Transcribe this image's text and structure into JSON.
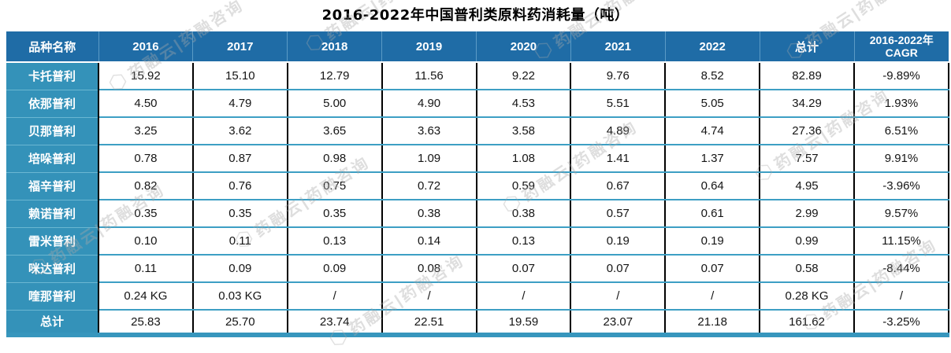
{
  "title": "2016-2022年中国普利类原料药消耗量（吨）",
  "watermark": {
    "text": "药融云|药融咨询"
  },
  "chart_data": {
    "type": "table",
    "title": "2016-2022年中国普利类原料药消耗量（吨）",
    "unit": "吨",
    "columns": [
      "品种名称",
      "2016",
      "2017",
      "2018",
      "2019",
      "2020",
      "2021",
      "2022",
      "总计"
    ],
    "cagr_header": {
      "line1": "2016-2022年",
      "line2": "CAGR"
    },
    "rows": [
      {
        "label": "卡托普利",
        "values": [
          "15.92",
          "15.10",
          "12.79",
          "11.56",
          "9.22",
          "9.76",
          "8.52",
          "82.89",
          "-9.89%"
        ]
      },
      {
        "label": "依那普利",
        "values": [
          "4.50",
          "4.79",
          "5.00",
          "4.90",
          "4.53",
          "5.51",
          "5.05",
          "34.29",
          "1.93%"
        ]
      },
      {
        "label": "贝那普利",
        "values": [
          "3.25",
          "3.62",
          "3.65",
          "3.63",
          "3.58",
          "4.89",
          "4.74",
          "27.36",
          "6.51%"
        ]
      },
      {
        "label": "培哚普利",
        "values": [
          "0.78",
          "0.87",
          "0.98",
          "1.09",
          "1.08",
          "1.41",
          "1.37",
          "7.57",
          "9.91%"
        ]
      },
      {
        "label": "福辛普利",
        "values": [
          "0.82",
          "0.76",
          "0.75",
          "0.72",
          "0.59",
          "0.67",
          "0.64",
          "4.95",
          "-3.96%"
        ]
      },
      {
        "label": "赖诺普利",
        "values": [
          "0.35",
          "0.35",
          "0.35",
          "0.38",
          "0.38",
          "0.57",
          "0.61",
          "2.99",
          "9.57%"
        ]
      },
      {
        "label": "雷米普利",
        "values": [
          "0.10",
          "0.11",
          "0.13",
          "0.14",
          "0.13",
          "0.19",
          "0.19",
          "0.99",
          "11.15%"
        ]
      },
      {
        "label": "咪达普利",
        "values": [
          "0.11",
          "0.09",
          "0.09",
          "0.08",
          "0.07",
          "0.07",
          "0.07",
          "0.58",
          "-8.44%"
        ]
      },
      {
        "label": "喹那普利",
        "values": [
          "0.24 KG",
          "0.03 KG",
          "/",
          "/",
          "/",
          "/",
          "/",
          "0.28 KG",
          "/"
        ]
      },
      {
        "label": "总计",
        "values": [
          "25.83",
          "25.70",
          "23.74",
          "22.51",
          "19.59",
          "23.07",
          "21.18",
          "161.62",
          "-3.25%"
        ]
      }
    ],
    "layout": {
      "grid": "on",
      "header_color": "#1F6CA6",
      "label_column_color": "#3492B9",
      "row_divider_color": "#3D9FC4",
      "column_divider_color": "#000000"
    }
  }
}
